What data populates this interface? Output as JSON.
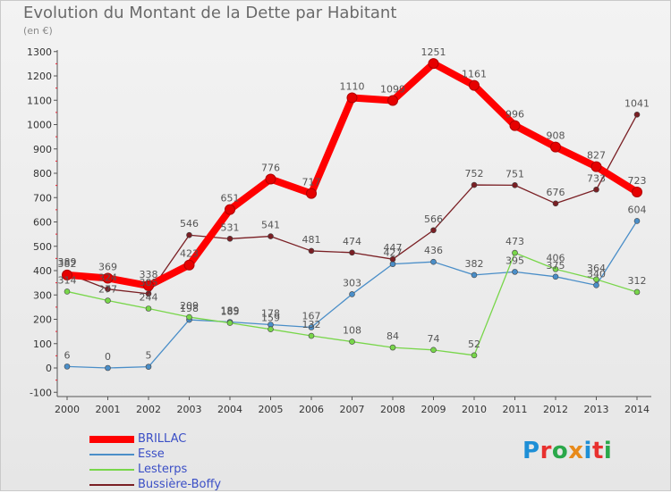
{
  "title": "Evolution du Montant de la Dette par Habitant",
  "subtitle": "(en €)",
  "logo": {
    "text": "Proxiti",
    "colors": [
      "#1e8fd6",
      "#e8312f",
      "#2aa84a",
      "#e88a1a",
      "#1e8fd6",
      "#e8312f",
      "#2aa84a"
    ]
  },
  "chart_data": {
    "type": "line",
    "title": "Evolution du Montant de la Dette par Habitant",
    "ylabel": "(en €)",
    "xlabel": "",
    "ylim": [
      -100,
      1300
    ],
    "yticks": [
      -100,
      0,
      100,
      200,
      300,
      400,
      500,
      600,
      700,
      800,
      900,
      1000,
      1100,
      1200,
      1300
    ],
    "x": [
      "2000",
      "2001",
      "2002",
      "2003",
      "2004",
      "2005",
      "2006",
      "2007",
      "2008",
      "2009",
      "2010",
      "2011",
      "2012",
      "2013",
      "2014"
    ],
    "grid": false,
    "legend": "bottom-left",
    "series": [
      {
        "name": "BRILLAC",
        "color": "#ff0000",
        "values": [
          382,
          369,
          338,
          423,
          651,
          776,
          717,
          1110,
          1099,
          1251,
          1161,
          996,
          908,
          827,
          723
        ]
      },
      {
        "name": "Esse",
        "color": "#4a8ec8",
        "values": [
          6,
          0,
          5,
          198,
          189,
          178,
          167,
          303,
          427,
          436,
          382,
          395,
          375,
          340,
          604
        ]
      },
      {
        "name": "Lesterps",
        "color": "#78d64a",
        "values": [
          314,
          277,
          244,
          209,
          185,
          159,
          132,
          108,
          84,
          74,
          52,
          473,
          406,
          364,
          312
        ]
      },
      {
        "name": "Bussière-Boffy",
        "color": "#7a1f24",
        "values": [
          389,
          324,
          305,
          546,
          531,
          541,
          481,
          474,
          447,
          566,
          752,
          751,
          676,
          733,
          1041
        ]
      }
    ],
    "data_labels": {
      "BRILLAC": [
        "382",
        "369",
        "338",
        "423",
        "651",
        "776",
        "717",
        "1110",
        "1099",
        "1251",
        "1161",
        "996",
        "908",
        "827",
        "723"
      ],
      "Esse": [
        "6",
        "0",
        "5",
        "198",
        "189",
        "178",
        "167",
        "303",
        "427",
        "436",
        "382",
        "395",
        "375",
        "340",
        "604"
      ],
      "Lesterps": [
        "314",
        "277",
        "244",
        "209",
        "185",
        "159",
        "132",
        "108",
        "84",
        "74",
        "52",
        "473",
        "406",
        "364",
        "312"
      ],
      "Bussière-Boffy": [
        "389",
        "324",
        "305",
        "546",
        "531",
        "541",
        "481",
        "474",
        "447",
        "566",
        "752",
        "751",
        "676",
        "733",
        "1041"
      ]
    }
  }
}
